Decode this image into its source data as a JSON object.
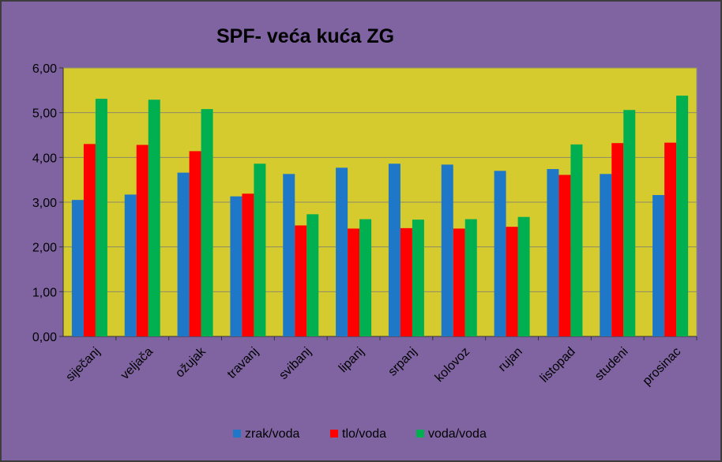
{
  "chart_data": {
    "type": "bar",
    "title": "SPF- veća kuća ZG",
    "categories": [
      "siječanj",
      "veljača",
      "ožujak",
      "travanj",
      "svibanj",
      "lipanj",
      "srpanj",
      "kolovoz",
      "rujan",
      "listopad",
      "studeni",
      "prosinac"
    ],
    "series": [
      {
        "name": "zrak/voda",
        "color": "#1f77c8",
        "values": [
          3.05,
          3.17,
          3.66,
          3.13,
          3.63,
          3.77,
          3.86,
          3.84,
          3.7,
          3.74,
          3.63,
          3.16
        ]
      },
      {
        "name": "tlo/voda",
        "color": "#ff0000",
        "values": [
          4.3,
          4.28,
          4.14,
          3.19,
          2.48,
          2.41,
          2.42,
          2.41,
          2.45,
          3.61,
          4.32,
          4.33
        ]
      },
      {
        "name": "voda/voda",
        "color": "#00b050",
        "values": [
          5.31,
          5.29,
          5.08,
          3.86,
          2.73,
          2.62,
          2.61,
          2.62,
          2.67,
          4.29,
          5.06,
          5.38
        ]
      }
    ],
    "ylim": [
      0,
      6
    ],
    "yticks": [
      "0,00",
      "1,00",
      "2,00",
      "3,00",
      "4,00",
      "5,00",
      "6,00"
    ],
    "grid": true,
    "legend_position": "bottom",
    "plot_background": "#d6cb2e"
  }
}
